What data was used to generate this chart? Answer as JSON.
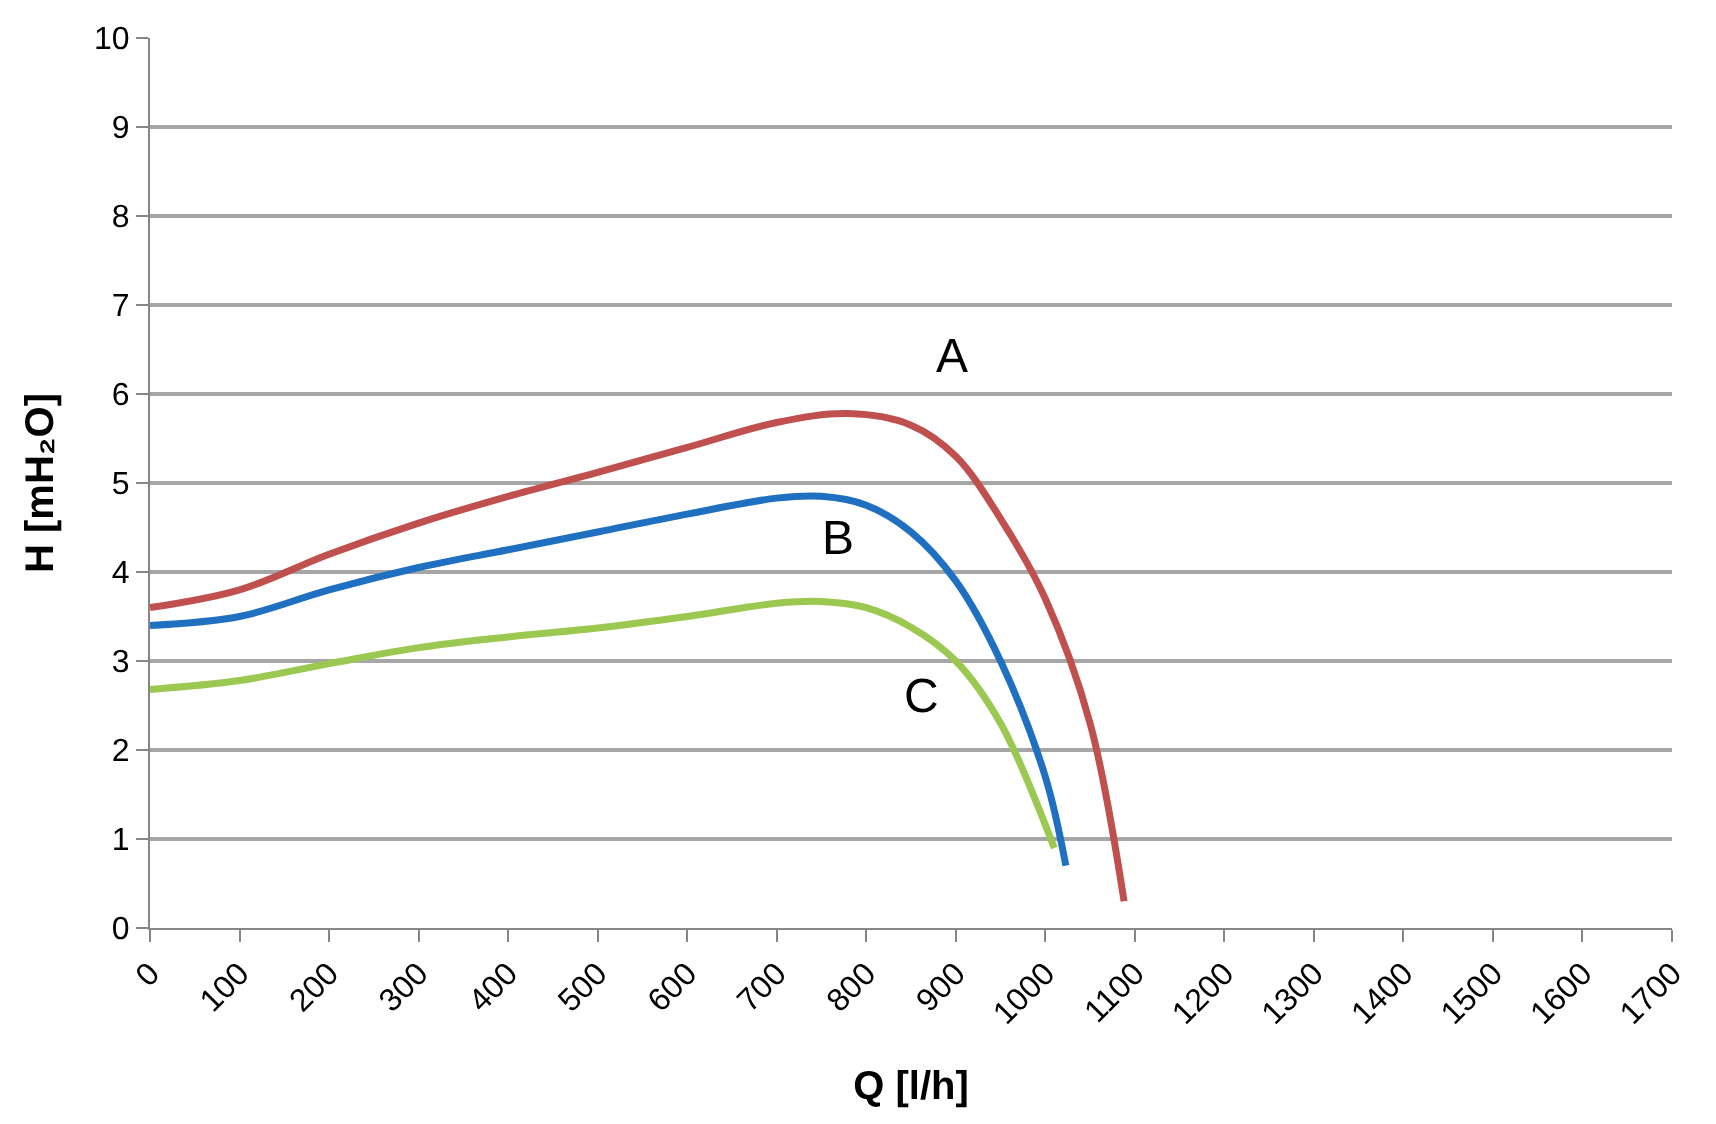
{
  "chart_data": {
    "type": "line",
    "xlabel": "Q [l/h]",
    "ylabel": "H [mH₂O]",
    "xlim": [
      0,
      1700
    ],
    "xticks": [
      0,
      100,
      200,
      300,
      400,
      500,
      600,
      700,
      800,
      900,
      1000,
      1100,
      1200,
      1300,
      1400,
      1500,
      1600,
      1700
    ],
    "ylim": [
      0,
      10
    ],
    "yticks": [
      0,
      1,
      2,
      3,
      4,
      5,
      6,
      7,
      8,
      9,
      10
    ],
    "grid": "y",
    "legend": false,
    "marker": "none",
    "line_style": "solid",
    "series": [
      {
        "name": "A",
        "color": "#c0504d",
        "x": [
          0,
          100,
          200,
          300,
          400,
          500,
          600,
          700,
          780,
          850,
          900,
          950,
          1000,
          1050,
          1088
        ],
        "values": [
          3.6,
          3.8,
          4.2,
          4.55,
          4.85,
          5.12,
          5.4,
          5.68,
          5.78,
          5.65,
          5.3,
          4.6,
          3.7,
          2.3,
          0.3
        ]
      },
      {
        "name": "B",
        "color": "#1f70c1",
        "x": [
          0,
          100,
          200,
          300,
          400,
          500,
          600,
          700,
          750,
          800,
          850,
          900,
          950,
          1000,
          1023
        ],
        "values": [
          3.4,
          3.5,
          3.8,
          4.05,
          4.25,
          4.45,
          4.65,
          4.83,
          4.85,
          4.75,
          4.45,
          3.9,
          3.0,
          1.7,
          0.7
        ]
      },
      {
        "name": "C",
        "color": "#9bc850",
        "x": [
          0,
          100,
          200,
          300,
          400,
          500,
          600,
          700,
          750,
          800,
          850,
          900,
          950,
          1010
        ],
        "values": [
          2.68,
          2.78,
          2.97,
          3.15,
          3.27,
          3.37,
          3.5,
          3.65,
          3.67,
          3.6,
          3.38,
          3.0,
          2.3,
          0.9
        ]
      }
    ]
  }
}
